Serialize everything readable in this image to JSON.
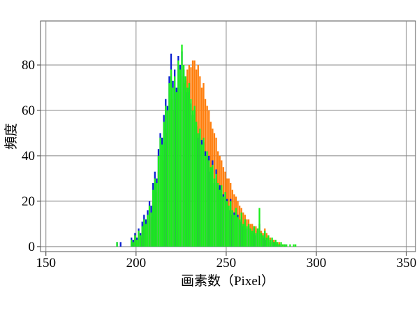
{
  "chart_data": {
    "type": "histogram",
    "x_label": "画素数（Pixel）",
    "y_label": "頻度",
    "xlim": [
      147,
      355
    ],
    "ylim": [
      -2.2,
      99.4
    ],
    "xticks": [
      150,
      200,
      250,
      300,
      350
    ],
    "yticks": [
      0,
      20,
      40,
      60,
      80
    ],
    "grid": true,
    "bins": [
      189,
      190,
      191,
      192,
      193,
      194,
      195,
      196,
      197,
      198,
      199,
      200,
      201,
      202,
      203,
      204,
      205,
      206,
      207,
      208,
      209,
      210,
      211,
      212,
      213,
      214,
      215,
      216,
      217,
      218,
      219,
      220,
      221,
      222,
      223,
      224,
      225,
      226,
      227,
      228,
      229,
      230,
      231,
      232,
      233,
      234,
      235,
      236,
      237,
      238,
      239,
      240,
      241,
      242,
      243,
      244,
      245,
      246,
      247,
      248,
      249,
      250,
      251,
      252,
      253,
      254,
      255,
      256,
      257,
      258,
      259,
      260,
      261,
      262,
      263,
      264,
      265,
      266,
      267,
      268,
      269,
      270,
      271,
      272,
      273,
      274,
      275,
      276,
      277,
      278,
      279,
      280,
      281,
      282,
      283,
      284,
      285,
      286,
      287,
      288,
      289
    ],
    "series": [
      {
        "color": "#ff7f0e",
        "values": [
          0,
          0,
          0,
          0,
          0,
          0,
          0,
          0,
          2,
          1,
          4,
          2,
          5,
          4,
          7,
          10,
          8,
          12,
          15,
          13,
          20,
          25,
          24,
          33,
          40,
          38,
          46,
          52,
          50,
          60,
          65,
          60,
          65,
          60,
          70,
          68,
          75,
          72,
          74,
          78,
          80,
          79,
          82,
          82,
          78,
          80,
          75,
          70,
          72,
          65,
          62,
          60,
          55,
          52,
          50,
          48,
          42,
          40,
          38,
          35,
          33,
          30,
          30,
          28,
          25,
          23,
          22,
          20,
          18,
          17,
          15,
          14,
          12,
          12,
          10,
          10,
          9,
          9,
          8,
          8,
          7,
          6,
          8,
          6,
          5,
          4,
          3,
          3,
          2,
          2,
          2,
          1,
          1,
          0,
          0,
          0,
          0,
          0,
          0,
          0
        ]
      },
      {
        "color": "#0a1fd0",
        "values": [
          2,
          0,
          2,
          0,
          0,
          0,
          0,
          0,
          4,
          3,
          6,
          4,
          8,
          6,
          11,
          14,
          12,
          16,
          20,
          18,
          28,
          33,
          30,
          43,
          50,
          48,
          58,
          65,
          62,
          75,
          85,
          73,
          78,
          70,
          84,
          80,
          86,
          78,
          73,
          68,
          70,
          63,
          58,
          60,
          53,
          48,
          50,
          47,
          46,
          42,
          40,
          40,
          33,
          38,
          28,
          34,
          26,
          27,
          25,
          23,
          22,
          21,
          16,
          21,
          14,
          15,
          15,
          14,
          11,
          13,
          9,
          11,
          8,
          9,
          7,
          6,
          8,
          5,
          7,
          10,
          5,
          4,
          6,
          3,
          4,
          2,
          3,
          2,
          2,
          1,
          1,
          1,
          0,
          1,
          0,
          0,
          0,
          0,
          0,
          0
        ]
      },
      {
        "color": "#1aee1a",
        "values": [
          2,
          0,
          0,
          0,
          0,
          0,
          0,
          0,
          3,
          2,
          5,
          3,
          7,
          5,
          9,
          12,
          10,
          14,
          18,
          15,
          25,
          30,
          28,
          40,
          48,
          45,
          55,
          62,
          60,
          72,
          78,
          70,
          75,
          68,
          82,
          78,
          89,
          80,
          75,
          70,
          72,
          65,
          60,
          62,
          55,
          50,
          52,
          45,
          48,
          40,
          42,
          38,
          35,
          36,
          30,
          32,
          28,
          25,
          27,
          22,
          24,
          20,
          18,
          20,
          16,
          14,
          17,
          13,
          12,
          15,
          10,
          12,
          9,
          10,
          8,
          7,
          9,
          6,
          8,
          17,
          6,
          5,
          7,
          4,
          5,
          3,
          4,
          2,
          3,
          2,
          1,
          2,
          1,
          1,
          1,
          0,
          1,
          0,
          1,
          1
        ]
      }
    ]
  }
}
